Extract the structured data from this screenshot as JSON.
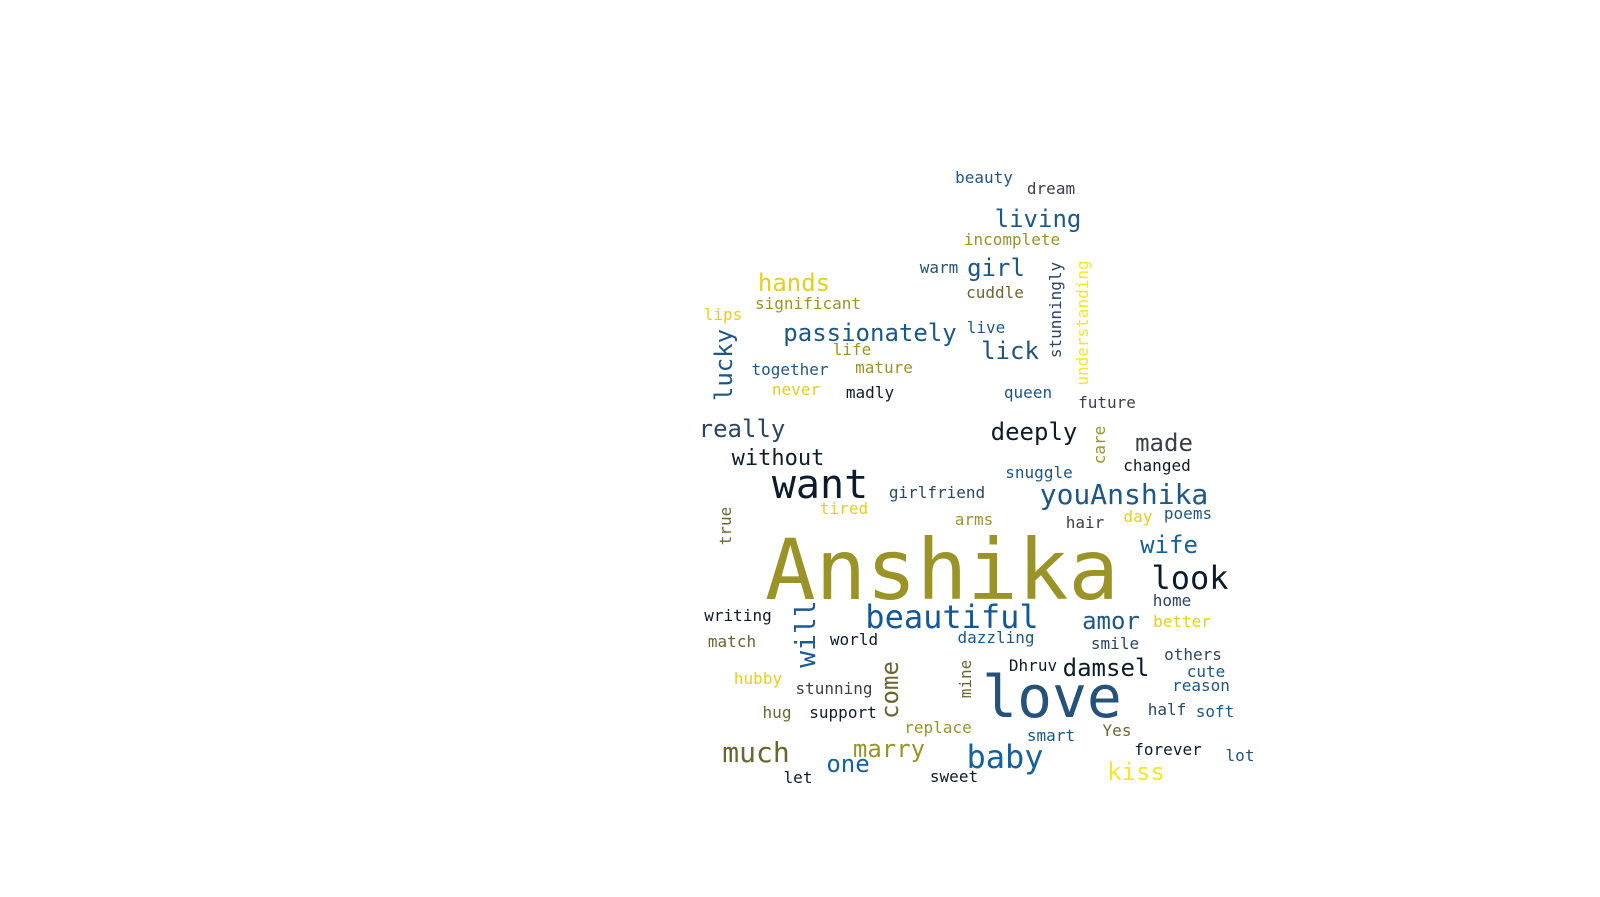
{
  "words": [
    {
      "text": "Anshika",
      "color": "#9a9328",
      "weight": 100,
      "vertical": false
    },
    {
      "text": "love",
      "color": "#24527a",
      "weight": 62,
      "vertical": false
    },
    {
      "text": "want",
      "color": "#0d1b2a",
      "weight": 44,
      "vertical": false
    },
    {
      "text": "beautiful",
      "color": "#11589a",
      "weight": 33,
      "vertical": false
    },
    {
      "text": "baby",
      "color": "#15609e",
      "weight": 33,
      "vertical": false
    },
    {
      "text": "look",
      "color": "#0d1b2a",
      "weight": 31,
      "vertical": false
    },
    {
      "text": "much",
      "color": "#6b6631",
      "weight": 30,
      "vertical": false
    },
    {
      "text": "youAnshika",
      "color": "#1d5788",
      "weight": 28,
      "vertical": false
    },
    {
      "text": "will",
      "color": "#1b5a95",
      "weight": 28,
      "vertical": true
    },
    {
      "text": "passionately",
      "color": "#1d5788",
      "weight": 25,
      "vertical": false
    },
    {
      "text": "really",
      "color": "#2b4563",
      "weight": 25,
      "vertical": false
    },
    {
      "text": "deeply",
      "color": "#0d1b2a",
      "weight": 25,
      "vertical": false
    },
    {
      "text": "living",
      "color": "#1d5788",
      "weight": 24,
      "vertical": false
    },
    {
      "text": "hands",
      "color": "#e6cf1a",
      "weight": 24,
      "vertical": false
    },
    {
      "text": "lick",
      "color": "#24527a",
      "weight": 24,
      "vertical": false
    },
    {
      "text": "girl",
      "color": "#1d5788",
      "weight": 24,
      "vertical": false
    },
    {
      "text": "made",
      "color": "#3a3f4a",
      "weight": 24,
      "vertical": false
    },
    {
      "text": "wife",
      "color": "#15609e",
      "weight": 24,
      "vertical": false
    },
    {
      "text": "marry",
      "color": "#9a9328",
      "weight": 24,
      "vertical": false
    },
    {
      "text": "kiss",
      "color": "#f5e62a",
      "weight": 24,
      "vertical": false
    },
    {
      "text": "damsel",
      "color": "#0d1b2a",
      "weight": 24,
      "vertical": false
    },
    {
      "text": "amor",
      "color": "#1d5788",
      "weight": 24,
      "vertical": false
    },
    {
      "text": "one",
      "color": "#15609e",
      "weight": 24,
      "vertical": false
    },
    {
      "text": "lucky",
      "color": "#1d5788",
      "weight": 24,
      "vertical": true
    },
    {
      "text": "come",
      "color": "#6b6631",
      "weight": 24,
      "vertical": true
    },
    {
      "text": "without",
      "color": "#0d1b2a",
      "weight": 22,
      "vertical": false
    },
    {
      "text": "beauty",
      "color": "#1d5788",
      "weight": 18,
      "vertical": false
    },
    {
      "text": "dream",
      "color": "#3a3f4a",
      "weight": 18,
      "vertical": false
    },
    {
      "text": "incomplete",
      "color": "#9a9328",
      "weight": 18,
      "vertical": false
    },
    {
      "text": "warm",
      "color": "#24527a",
      "weight": 18,
      "vertical": false
    },
    {
      "text": "cuddle",
      "color": "#6b6631",
      "weight": 18,
      "vertical": false
    },
    {
      "text": "significant",
      "color": "#9a9328",
      "weight": 18,
      "vertical": false
    },
    {
      "text": "lips",
      "color": "#e6cf1a",
      "weight": 18,
      "vertical": false
    },
    {
      "text": "live",
      "color": "#1d5788",
      "weight": 18,
      "vertical": false
    },
    {
      "text": "life",
      "color": "#9a9328",
      "weight": 18,
      "vertical": false
    },
    {
      "text": "together",
      "color": "#1d5788",
      "weight": 18,
      "vertical": false
    },
    {
      "text": "mature",
      "color": "#9a9328",
      "weight": 18,
      "vertical": false
    },
    {
      "text": "never",
      "color": "#e6cf1a",
      "weight": 18,
      "vertical": false
    },
    {
      "text": "madly",
      "color": "#0d1b2a",
      "weight": 18,
      "vertical": false
    },
    {
      "text": "queen",
      "color": "#1d5788",
      "weight": 18,
      "vertical": false
    },
    {
      "text": "future",
      "color": "#3a3f4a",
      "weight": 18,
      "vertical": false
    },
    {
      "text": "stunningly",
      "color": "#2b4563",
      "weight": 18,
      "vertical": true
    },
    {
      "text": "understanding",
      "color": "#f5e62a",
      "weight": 18,
      "vertical": true
    },
    {
      "text": "care",
      "color": "#9a9328",
      "weight": 18,
      "vertical": true
    },
    {
      "text": "changed",
      "color": "#0d1b2a",
      "weight": 18,
      "vertical": false
    },
    {
      "text": "snuggle",
      "color": "#1d5788",
      "weight": 18,
      "vertical": false
    },
    {
      "text": "girlfriend",
      "color": "#2b4563",
      "weight": 18,
      "vertical": false
    },
    {
      "text": "tired",
      "color": "#e6cf1a",
      "weight": 18,
      "vertical": false
    },
    {
      "text": "arms",
      "color": "#9a9328",
      "weight": 18,
      "vertical": false
    },
    {
      "text": "hair",
      "color": "#3a3f4a",
      "weight": 18,
      "vertical": false
    },
    {
      "text": "day",
      "color": "#e6cf1a",
      "weight": 18,
      "vertical": false
    },
    {
      "text": "poems",
      "color": "#1d5788",
      "weight": 18,
      "vertical": false
    },
    {
      "text": "true",
      "color": "#6b6631",
      "weight": 18,
      "vertical": true
    },
    {
      "text": "home",
      "color": "#2b4563",
      "weight": 18,
      "vertical": false
    },
    {
      "text": "writing",
      "color": "#0d1b2a",
      "weight": 18,
      "vertical": false
    },
    {
      "text": "better",
      "color": "#e6cf1a",
      "weight": 18,
      "vertical": false
    },
    {
      "text": "match",
      "color": "#6b6631",
      "weight": 18,
      "vertical": false
    },
    {
      "text": "world",
      "color": "#0d1b2a",
      "weight": 18,
      "vertical": false
    },
    {
      "text": "dazzling",
      "color": "#1d5788",
      "weight": 18,
      "vertical": false
    },
    {
      "text": "smile",
      "color": "#2b4563",
      "weight": 18,
      "vertical": false
    },
    {
      "text": "others",
      "color": "#2b4563",
      "weight": 18,
      "vertical": false
    },
    {
      "text": "Dhruv",
      "color": "#0d1b2a",
      "weight": 18,
      "vertical": false
    },
    {
      "text": "cute",
      "color": "#1d5788",
      "weight": 18,
      "vertical": false
    },
    {
      "text": "hubby",
      "color": "#e6cf1a",
      "weight": 18,
      "vertical": false
    },
    {
      "text": "stunning",
      "color": "#3a3f4a",
      "weight": 18,
      "vertical": false
    },
    {
      "text": "mine",
      "color": "#6b6631",
      "weight": 18,
      "vertical": true
    },
    {
      "text": "reason",
      "color": "#1d5788",
      "weight": 18,
      "vertical": false
    },
    {
      "text": "half",
      "color": "#2b4563",
      "weight": 18,
      "vertical": false
    },
    {
      "text": "soft",
      "color": "#1d5788",
      "weight": 18,
      "vertical": false
    },
    {
      "text": "hug",
      "color": "#6b6631",
      "weight": 18,
      "vertical": false
    },
    {
      "text": "support",
      "color": "#0d1b2a",
      "weight": 18,
      "vertical": false
    },
    {
      "text": "replace",
      "color": "#9a9328",
      "weight": 18,
      "vertical": false
    },
    {
      "text": "smart",
      "color": "#1d5788",
      "weight": 18,
      "vertical": false
    },
    {
      "text": "Yes",
      "color": "#6b6631",
      "weight": 18,
      "vertical": false
    },
    {
      "text": "forever",
      "color": "#0d1b2a",
      "weight": 18,
      "vertical": false
    },
    {
      "text": "lot",
      "color": "#24527a",
      "weight": 18,
      "vertical": false
    },
    {
      "text": "let",
      "color": "#0d1b2a",
      "weight": 18,
      "vertical": false
    },
    {
      "text": "sweet",
      "color": "#0d1b2a",
      "weight": 18,
      "vertical": false
    }
  ]
}
